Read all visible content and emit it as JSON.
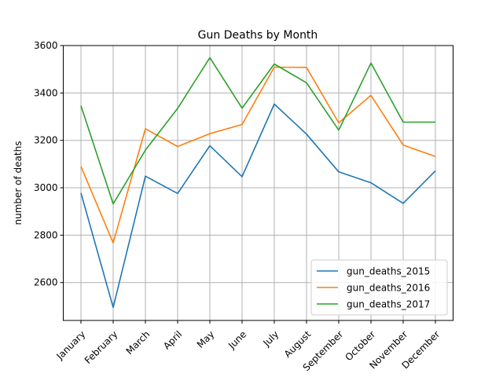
{
  "chart_data": {
    "type": "line",
    "title": "Gun Deaths by Month",
    "xlabel": "",
    "ylabel": "number of deaths",
    "categories": [
      "January",
      "February",
      "March",
      "April",
      "May",
      "June",
      "July",
      "August",
      "September",
      "October",
      "November",
      "December"
    ],
    "ylim": [
      2440,
      3600
    ],
    "yticks": [
      2600,
      2800,
      3000,
      3200,
      3400,
      3600
    ],
    "grid": true,
    "legend_position": "lower-right",
    "series": [
      {
        "name": "gun_deaths_2015",
        "color": "#1f77b4",
        "values": [
          2978,
          2495,
          3049,
          2976,
          3177,
          3047,
          3353,
          3226,
          3067,
          3021,
          2934,
          3071
        ]
      },
      {
        "name": "gun_deaths_2016",
        "color": "#ff7f0e",
        "values": [
          3090,
          2767,
          3249,
          3174,
          3228,
          3267,
          3509,
          3508,
          3274,
          3390,
          3180,
          3132
        ]
      },
      {
        "name": "gun_deaths_2017",
        "color": "#2ca02c",
        "values": [
          3346,
          2932,
          3159,
          3335,
          3549,
          3336,
          3522,
          3443,
          3243,
          3526,
          3277,
          3277
        ]
      }
    ]
  }
}
